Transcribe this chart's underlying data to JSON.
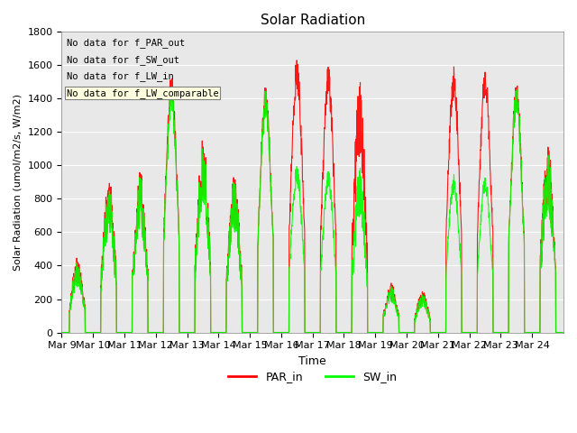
{
  "title": "Solar Radiation",
  "ylabel": "Solar Radiation (umol/m2/s, W/m2)",
  "xlabel": "Time",
  "ylim": [
    0,
    1800
  ],
  "yticks": [
    0,
    200,
    400,
    600,
    800,
    1000,
    1200,
    1400,
    1600,
    1800
  ],
  "xtick_labels": [
    "Mar 9",
    "Mar 10",
    "Mar 11",
    "Mar 12",
    "Mar 13",
    "Mar 14",
    "Mar 15",
    "Mar 16",
    "Mar 17",
    "Mar 18",
    "Mar 19",
    "Mar 20",
    "Mar 21",
    "Mar 22",
    "Mar 23",
    "Mar 24"
  ],
  "annotations": [
    "No data for f_PAR_out",
    "No data for f_SW_out",
    "No data for f_LW_in",
    "No data for f_LW_comparable"
  ],
  "legend_entries": [
    "PAR_in",
    "SW_in"
  ],
  "par_color": "red",
  "sw_color": "lime",
  "plot_bg_color": "#e8e8e8",
  "n_days": 16,
  "par_peaks": [
    450,
    950,
    980,
    1540,
    1200,
    950,
    1480,
    1640,
    1600,
    1520,
    300,
    250,
    1600,
    1600,
    1500,
    1150
  ],
  "sw_peaks": [
    420,
    900,
    950,
    1480,
    1150,
    920,
    1460,
    1000,
    970,
    1000,
    280,
    230,
    950,
    950,
    1480,
    1100
  ]
}
